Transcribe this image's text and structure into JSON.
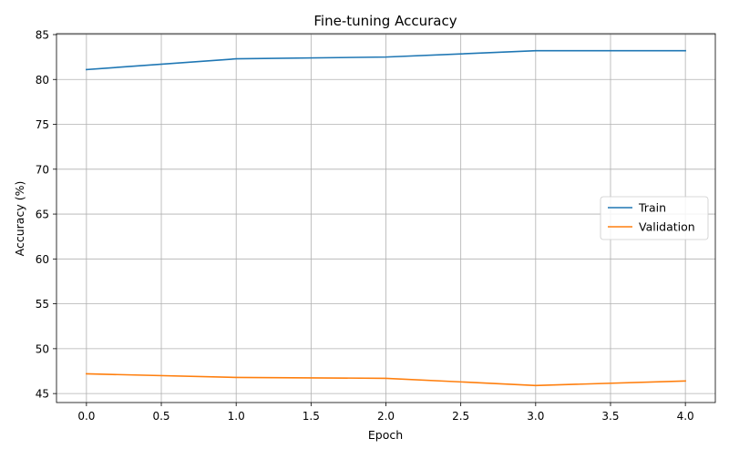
{
  "chart_data": {
    "type": "line",
    "title": "Fine-tuning Accuracy",
    "xlabel": "Epoch",
    "ylabel": "Accuracy (%)",
    "x": [
      0,
      1,
      2,
      3,
      4
    ],
    "series": [
      {
        "name": "Train",
        "color": "#1f77b4",
        "values": [
          81.1,
          82.3,
          82.5,
          83.2,
          83.2
        ]
      },
      {
        "name": "Validation",
        "color": "#ff7f0e",
        "values": [
          47.2,
          46.8,
          46.7,
          45.9,
          46.4
        ]
      }
    ],
    "xlim": [
      -0.2,
      4.2
    ],
    "ylim": [
      44.0,
      85.1
    ],
    "xticks": [
      "0.0",
      "0.5",
      "1.0",
      "1.5",
      "2.0",
      "2.5",
      "3.0",
      "3.5",
      "4.0"
    ],
    "yticks": [
      "45",
      "50",
      "55",
      "60",
      "65",
      "70",
      "75",
      "80",
      "85"
    ],
    "grid": true,
    "legend_position": "center-right"
  }
}
